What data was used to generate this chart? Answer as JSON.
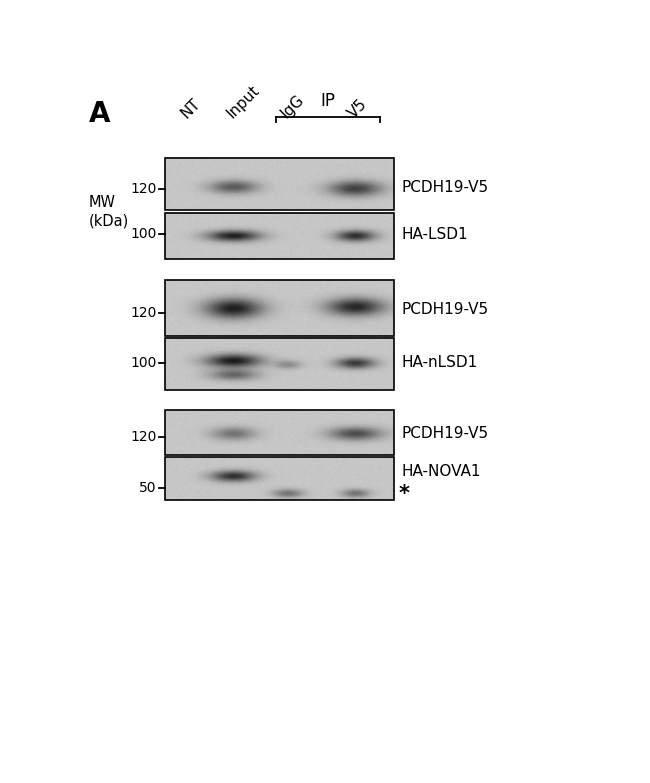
{
  "panel_label": "A",
  "ip_label": "IP",
  "column_labels": [
    "NT",
    "Input",
    "IgG",
    "V5"
  ],
  "mw_label": "MW\n(kDa)",
  "band_labels": [
    [
      "PCDH19-V5",
      "HA-LSD1"
    ],
    [
      "PCDH19-V5",
      "HA-nLSD1"
    ],
    [
      "PCDH19-V5",
      "HA-NOVA1"
    ]
  ],
  "mw_ticks_g1": [
    "120",
    "100"
  ],
  "mw_ticks_g2": [
    "120",
    "100"
  ],
  "mw_ticks_g3": [
    "120",
    "50"
  ],
  "bg_gray": 0.78,
  "figure_bg": "#ffffff",
  "asterisk": "*"
}
